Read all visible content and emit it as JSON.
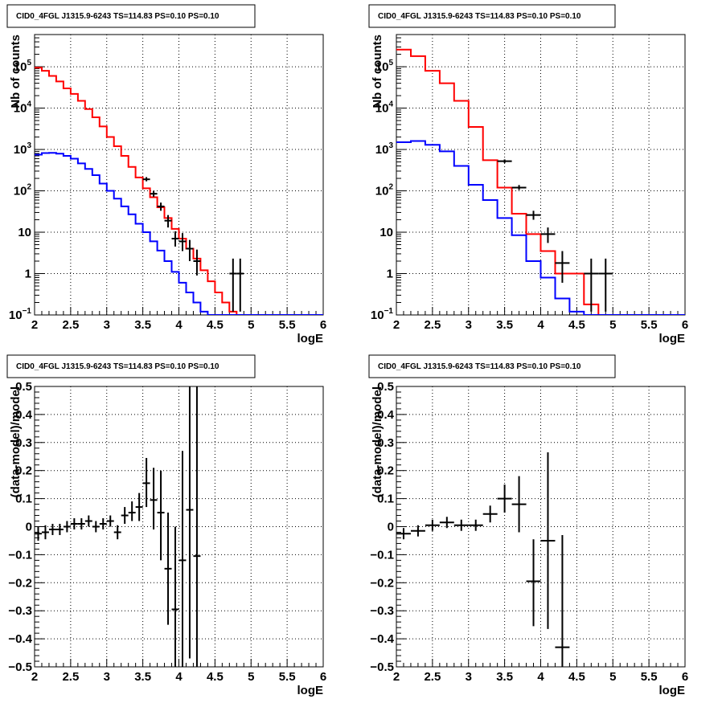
{
  "colors": {
    "model": "#ff0000",
    "background": "#0000ff",
    "data": "#000000",
    "frame": "#000000"
  },
  "chart_data": [
    {
      "type": "line",
      "title": "CID0_4FGL J1315.9-6243 TS=114.83 PS=0.10 PS=0.10",
      "xlabel": "logE",
      "ylabel": "Nb of counts",
      "yscale": "log",
      "xlim": [
        2,
        6
      ],
      "ylim": [
        0.1,
        600000
      ],
      "xticks": [
        "2",
        "2.5",
        "3",
        "3.5",
        "4",
        "4.5",
        "5",
        "5.5",
        "6"
      ],
      "yticks": [
        "10^-1",
        "1",
        "10",
        "10^2",
        "10^3",
        "10^4",
        "10^5"
      ],
      "grid": true,
      "bin_edges": [
        2.0,
        2.1,
        2.2,
        2.3,
        2.4,
        2.5,
        2.6,
        2.7,
        2.8,
        2.9,
        3.0,
        3.1,
        3.2,
        3.3,
        3.4,
        3.5,
        3.6,
        3.7,
        3.8,
        3.9,
        4.0,
        4.1,
        4.2,
        4.3,
        4.4,
        4.5,
        4.6,
        4.7,
        4.8,
        4.9,
        5.0,
        5.1,
        5.2,
        5.3,
        5.4,
        5.5,
        5.6,
        5.7,
        5.8,
        5.9,
        6.0
      ],
      "series": [
        {
          "color": "red",
          "style": "hist",
          "values": [
            95000,
            80000,
            60000,
            44000,
            30000,
            22000,
            15000,
            9500,
            6000,
            3600,
            2000,
            1200,
            700,
            380,
            210,
            115,
            70,
            40,
            22,
            12,
            7,
            4,
            2.3,
            1.2,
            0.65,
            0.35,
            0.2,
            0.12,
            0.1,
            0.1,
            0.1,
            0.1,
            0.1,
            0.1,
            0.1,
            0.1,
            0.1,
            0.1,
            0.1,
            0.1
          ]
        },
        {
          "color": "blue",
          "style": "hist",
          "values": [
            750,
            820,
            830,
            790,
            700,
            600,
            460,
            340,
            240,
            150,
            100,
            65,
            42,
            27,
            16,
            10,
            6,
            3.6,
            2,
            1.1,
            0.6,
            0.35,
            0.2,
            0.12,
            0.1,
            0.1,
            0.1,
            0.1,
            0.1,
            0.1,
            0.1,
            0.1,
            0.1,
            0.1,
            0.1,
            0.1,
            0.1,
            0.1,
            0.1,
            0.1
          ]
        },
        {
          "color": "black",
          "style": "errorbar",
          "points": [
            {
              "x": 3.55,
              "y": 190,
              "dx": 0.05,
              "lo": 170,
              "hi": 215
            },
            {
              "x": 3.65,
              "y": 85,
              "dx": 0.05,
              "lo": 72,
              "hi": 100
            },
            {
              "x": 3.75,
              "y": 42,
              "dx": 0.05,
              "lo": 33,
              "hi": 52
            },
            {
              "x": 3.85,
              "y": 19,
              "dx": 0.05,
              "lo": 13,
              "hi": 26
            },
            {
              "x": 3.95,
              "y": 7,
              "dx": 0.05,
              "lo": 4.5,
              "hi": 10.5
            },
            {
              "x": 4.05,
              "y": 6,
              "dx": 0.05,
              "lo": 3.5,
              "hi": 9.5
            },
            {
              "x": 4.15,
              "y": 4,
              "dx": 0.05,
              "lo": 2.0,
              "hi": 6.5
            },
            {
              "x": 4.25,
              "y": 2,
              "dx": 0.05,
              "lo": 0.9,
              "hi": 3.8
            },
            {
              "x": 4.75,
              "y": 1,
              "dx": 0.05,
              "lo": 0.12,
              "hi": 2.3
            },
            {
              "x": 4.85,
              "y": 1,
              "dx": 0.05,
              "lo": 0.12,
              "hi": 2.3
            }
          ]
        }
      ]
    },
    {
      "type": "line",
      "title": "CID0_4FGL J1315.9-6243 TS=114.83 PS=0.10 PS=0.10",
      "xlabel": "logE",
      "ylabel": "Nb of counts",
      "yscale": "log",
      "xlim": [
        2,
        6
      ],
      "ylim": [
        0.1,
        600000
      ],
      "xticks": [
        "2",
        "2.5",
        "3",
        "3.5",
        "4",
        "4.5",
        "5",
        "5.5",
        "6"
      ],
      "yticks": [
        "10^-1",
        "1",
        "10",
        "10^2",
        "10^3",
        "10^4",
        "10^5"
      ],
      "grid": true,
      "bin_edges": [
        2.0,
        2.2,
        2.4,
        2.6,
        2.8,
        3.0,
        3.2,
        3.4,
        3.6,
        3.8,
        4.0,
        4.2,
        4.4,
        4.6,
        4.8,
        5.0,
        5.2,
        5.4,
        5.6,
        5.8,
        6.0
      ],
      "series": [
        {
          "color": "red",
          "style": "hist",
          "values": [
            260000,
            180000,
            80000,
            40000,
            15000,
            3500,
            550,
            120,
            28,
            9,
            3.5,
            1,
            1,
            0.18,
            0.1,
            0.1,
            0.1,
            0.1,
            0.1,
            0.1
          ]
        },
        {
          "color": "blue",
          "style": "hist",
          "values": [
            1500,
            1600,
            1300,
            900,
            400,
            140,
            60,
            22,
            8.5,
            2,
            0.8,
            0.25,
            0.12,
            0.1,
            0.1,
            0.1,
            0.1,
            0.1,
            0.1,
            0.1
          ]
        },
        {
          "color": "black",
          "style": "errorbar",
          "points": [
            {
              "x": 3.5,
              "y": 520,
              "dx": 0.1,
              "lo": 470,
              "hi": 575
            },
            {
              "x": 3.7,
              "y": 120,
              "dx": 0.1,
              "lo": 105,
              "hi": 138
            },
            {
              "x": 3.9,
              "y": 26,
              "dx": 0.1,
              "lo": 20,
              "hi": 33
            },
            {
              "x": 4.1,
              "y": 9,
              "dx": 0.1,
              "lo": 5.5,
              "hi": 13
            },
            {
              "x": 4.3,
              "y": 1.8,
              "dx": 0.1,
              "lo": 0.6,
              "hi": 3.5
            },
            {
              "x": 4.7,
              "y": 1,
              "dx": 0.1,
              "lo": 0.12,
              "hi": 2.3
            },
            {
              "x": 4.9,
              "y": 1,
              "dx": 0.1,
              "lo": 0.12,
              "hi": 2.3
            }
          ]
        }
      ]
    },
    {
      "type": "scatter",
      "title": "CID0_4FGL J1315.9-6243 TS=114.83 PS=0.10 PS=0.10",
      "xlabel": "logE",
      "ylabel": "(data-model)/model",
      "yscale": "linear",
      "xlim": [
        2,
        6
      ],
      "ylim": [
        -0.5,
        0.5
      ],
      "xticks": [
        "2",
        "2.5",
        "3",
        "3.5",
        "4",
        "4.5",
        "5",
        "5.5",
        "6"
      ],
      "yticks": [
        "-0.5",
        "-0.4",
        "-0.3",
        "-0.2",
        "-0.1",
        "0",
        "0.1",
        "0.2",
        "0.3",
        "0.4",
        "0.5"
      ],
      "grid": true,
      "series": [
        {
          "color": "black",
          "style": "errorbar",
          "points": [
            {
              "x": 2.05,
              "y": -0.025,
              "dx": 0.05,
              "lo": -0.05,
              "hi": 0.0
            },
            {
              "x": 2.15,
              "y": -0.02,
              "dx": 0.05,
              "lo": -0.045,
              "hi": 0.005
            },
            {
              "x": 2.25,
              "y": -0.01,
              "dx": 0.05,
              "lo": -0.03,
              "hi": 0.01
            },
            {
              "x": 2.35,
              "y": -0.01,
              "dx": 0.05,
              "lo": -0.03,
              "hi": 0.01
            },
            {
              "x": 2.45,
              "y": 0.0,
              "dx": 0.05,
              "lo": -0.02,
              "hi": 0.02
            },
            {
              "x": 2.55,
              "y": 0.01,
              "dx": 0.05,
              "lo": -0.01,
              "hi": 0.03
            },
            {
              "x": 2.65,
              "y": 0.01,
              "dx": 0.05,
              "lo": -0.01,
              "hi": 0.03
            },
            {
              "x": 2.75,
              "y": 0.02,
              "dx": 0.05,
              "lo": 0.0,
              "hi": 0.04
            },
            {
              "x": 2.85,
              "y": 0.0,
              "dx": 0.05,
              "lo": -0.02,
              "hi": 0.02
            },
            {
              "x": 2.95,
              "y": 0.01,
              "dx": 0.05,
              "lo": -0.01,
              "hi": 0.03
            },
            {
              "x": 3.05,
              "y": 0.02,
              "dx": 0.05,
              "lo": 0.0,
              "hi": 0.04
            },
            {
              "x": 3.15,
              "y": -0.02,
              "dx": 0.05,
              "lo": -0.045,
              "hi": 0.005
            },
            {
              "x": 3.25,
              "y": 0.04,
              "dx": 0.05,
              "lo": 0.01,
              "hi": 0.07
            },
            {
              "x": 3.35,
              "y": 0.05,
              "dx": 0.05,
              "lo": 0.02,
              "hi": 0.09
            },
            {
              "x": 3.45,
              "y": 0.07,
              "dx": 0.05,
              "lo": 0.02,
              "hi": 0.12
            },
            {
              "x": 3.55,
              "y": 0.155,
              "dx": 0.05,
              "lo": 0.07,
              "hi": 0.245
            },
            {
              "x": 3.65,
              "y": 0.095,
              "dx": 0.05,
              "lo": -0.01,
              "hi": 0.21
            },
            {
              "x": 3.75,
              "y": 0.05,
              "dx": 0.05,
              "lo": -0.12,
              "hi": 0.2
            },
            {
              "x": 3.85,
              "y": -0.15,
              "dx": 0.05,
              "lo": -0.35,
              "hi": 0.05
            },
            {
              "x": 3.95,
              "y": -0.295,
              "dx": 0.05,
              "lo": -0.5,
              "hi": 0.0
            },
            {
              "x": 4.05,
              "y": -0.12,
              "dx": 0.05,
              "lo": -0.5,
              "hi": 0.27
            },
            {
              "x": 4.15,
              "y": 0.06,
              "dx": 0.05,
              "lo": -0.47,
              "hi": 0.5
            },
            {
              "x": 4.25,
              "y": -0.105,
              "dx": 0.05,
              "lo": -0.5,
              "hi": 0.5
            }
          ]
        }
      ]
    },
    {
      "type": "scatter",
      "title": "CID0_4FGL J1315.9-6243 TS=114.83 PS=0.10 PS=0.10",
      "xlabel": "logE",
      "ylabel": "(data-model)/model",
      "yscale": "linear",
      "xlim": [
        2,
        6
      ],
      "ylim": [
        -0.5,
        0.5
      ],
      "xticks": [
        "2",
        "2.5",
        "3",
        "3.5",
        "4",
        "4.5",
        "5",
        "5.5",
        "6"
      ],
      "yticks": [
        "-0.5",
        "-0.4",
        "-0.3",
        "-0.2",
        "-0.1",
        "0",
        "0.1",
        "0.2",
        "0.3",
        "0.4",
        "0.5"
      ],
      "grid": true,
      "series": [
        {
          "color": "black",
          "style": "errorbar",
          "points": [
            {
              "x": 2.1,
              "y": -0.025,
              "dx": 0.1,
              "lo": -0.045,
              "hi": -0.005
            },
            {
              "x": 2.3,
              "y": -0.015,
              "dx": 0.1,
              "lo": -0.035,
              "hi": 0.005
            },
            {
              "x": 2.5,
              "y": 0.005,
              "dx": 0.1,
              "lo": -0.015,
              "hi": 0.025
            },
            {
              "x": 2.7,
              "y": 0.015,
              "dx": 0.1,
              "lo": -0.005,
              "hi": 0.035
            },
            {
              "x": 2.9,
              "y": 0.005,
              "dx": 0.1,
              "lo": -0.015,
              "hi": 0.025
            },
            {
              "x": 3.1,
              "y": 0.005,
              "dx": 0.1,
              "lo": -0.015,
              "hi": 0.025
            },
            {
              "x": 3.3,
              "y": 0.045,
              "dx": 0.1,
              "lo": 0.015,
              "hi": 0.075
            },
            {
              "x": 3.5,
              "y": 0.1,
              "dx": 0.1,
              "lo": 0.05,
              "hi": 0.15
            },
            {
              "x": 3.7,
              "y": 0.08,
              "dx": 0.1,
              "lo": -0.02,
              "hi": 0.18
            },
            {
              "x": 3.9,
              "y": -0.195,
              "dx": 0.1,
              "lo": -0.355,
              "hi": -0.045
            },
            {
              "x": 4.1,
              "y": -0.05,
              "dx": 0.1,
              "lo": -0.365,
              "hi": 0.265
            },
            {
              "x": 4.3,
              "y": -0.43,
              "dx": 0.1,
              "lo": -0.5,
              "hi": -0.03
            }
          ]
        }
      ]
    }
  ]
}
